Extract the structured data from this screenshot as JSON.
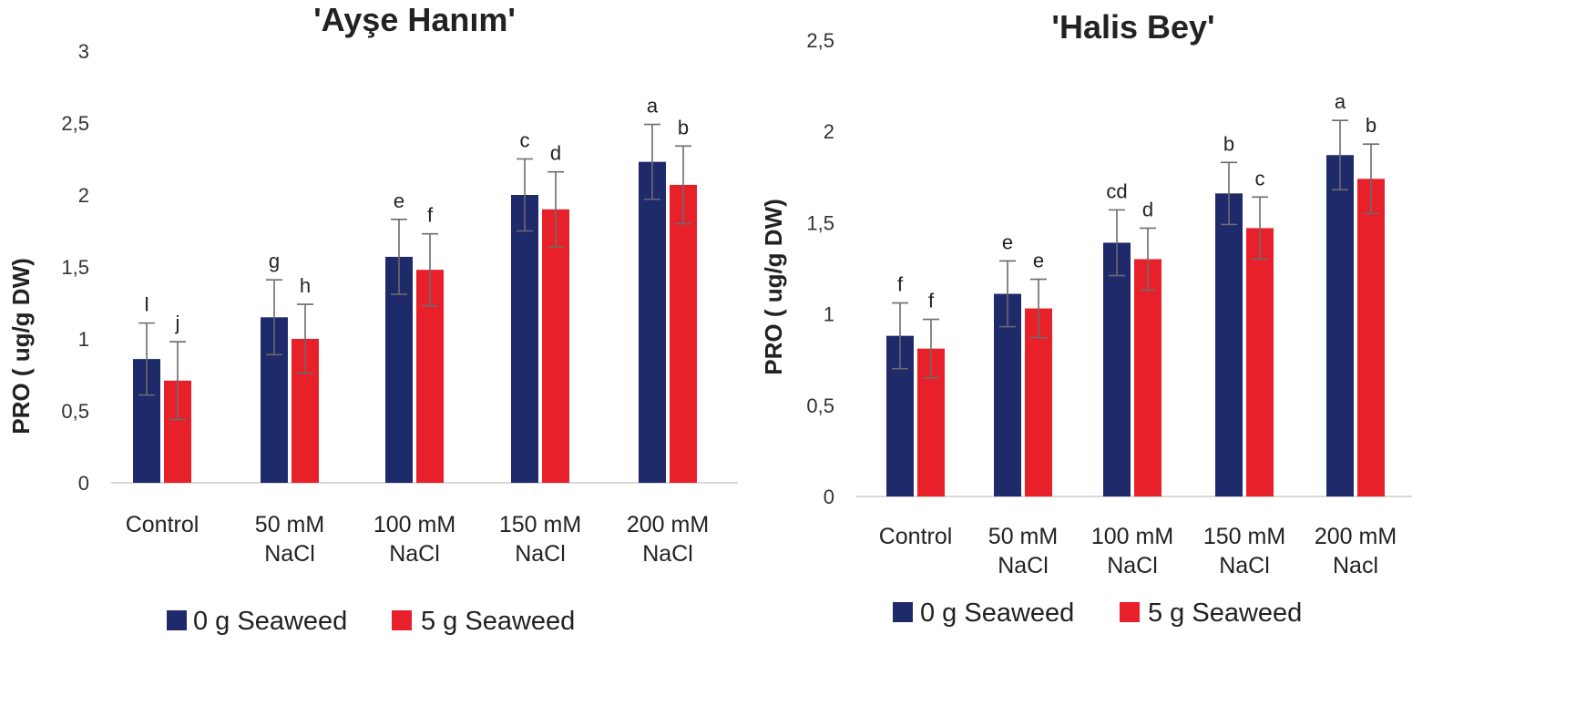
{
  "chart_data": [
    {
      "type": "bar",
      "title": "'Ayşe Hanım'",
      "xlabel": "",
      "ylabel": "PRO ( ug/g DW)",
      "ylim": [
        0,
        3
      ],
      "yticks": [
        "0",
        "0,5",
        "1",
        "1,5",
        "2",
        "2,5",
        "3"
      ],
      "grid": false,
      "legend": "bottom",
      "categories": [
        [
          "Control"
        ],
        [
          "50 mM",
          "NaCl"
        ],
        [
          "100 mM",
          "NaCl"
        ],
        [
          "150 mM",
          "NaCl"
        ],
        [
          "200 mM",
          "NaCl"
        ]
      ],
      "series": [
        {
          "name": "0 g Seaweed",
          "color": "#1f2a6b",
          "values": [
            0.86,
            1.15,
            1.57,
            2.0,
            2.23
          ],
          "errors": [
            0.25,
            0.26,
            0.26,
            0.25,
            0.26
          ],
          "letters": [
            "I",
            "g",
            "e",
            "c",
            "a"
          ]
        },
        {
          "name": "5 g Seaweed",
          "color": "#e8202a",
          "values": [
            0.71,
            1.0,
            1.48,
            1.9,
            2.07
          ],
          "errors": [
            0.27,
            0.24,
            0.25,
            0.26,
            0.27
          ],
          "letters": [
            "j",
            "h",
            "f",
            "d",
            "b"
          ]
        }
      ]
    },
    {
      "type": "bar",
      "title": "'Halis Bey'",
      "xlabel": "",
      "ylabel": "PRO ( ug/g DW)",
      "ylim": [
        0,
        2.5
      ],
      "yticks": [
        "0",
        "0,5",
        "1",
        "1,5",
        "2",
        "2,5"
      ],
      "grid": false,
      "legend": "bottom",
      "categories": [
        [
          "Control"
        ],
        [
          "50 mM",
          "NaCl"
        ],
        [
          "100 mM",
          "NaCl"
        ],
        [
          "150 mM",
          "NaCl"
        ],
        [
          "200 mM",
          "Nacl"
        ]
      ],
      "series": [
        {
          "name": "0 g Seaweed",
          "color": "#1f2a6b",
          "values": [
            0.88,
            1.11,
            1.39,
            1.66,
            1.87
          ],
          "errors": [
            0.18,
            0.18,
            0.18,
            0.17,
            0.19
          ],
          "letters": [
            "f",
            "e",
            "cd",
            "b",
            "a"
          ]
        },
        {
          "name": "5 g Seaweed",
          "color": "#e8202a",
          "values": [
            0.81,
            1.03,
            1.3,
            1.47,
            1.74
          ],
          "errors": [
            0.16,
            0.16,
            0.17,
            0.17,
            0.19
          ],
          "letters": [
            "f",
            "e",
            "d",
            "c",
            "b"
          ]
        }
      ]
    }
  ]
}
